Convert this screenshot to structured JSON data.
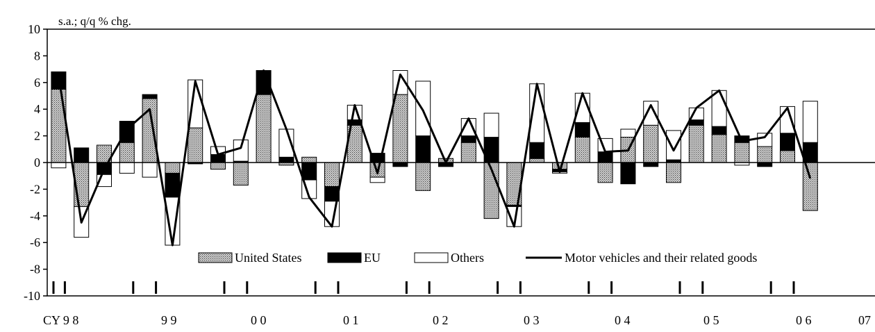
{
  "chart_data": {
    "type": "bar",
    "subtype": "stacked bar with line overlay",
    "unit_label": "s.a.; q/q % chg.",
    "ylim": [
      -10,
      10
    ],
    "yticks": [
      10,
      8,
      6,
      4,
      2,
      0,
      -2,
      -4,
      -6,
      -8,
      -10
    ],
    "grid": false,
    "legend_position": "bottom-center",
    "year_labels": [
      {
        "text": "CY 9 8",
        "q": 1
      },
      {
        "text": "9 9",
        "q": 5
      },
      {
        "text": "0 0",
        "q": 9
      },
      {
        "text": "0 1",
        "q": 13
      },
      {
        "text": "0 2",
        "q": 17
      },
      {
        "text": "0 3",
        "q": 21
      },
      {
        "text": "0 4",
        "q": 25
      },
      {
        "text": "0 5",
        "q": 29
      },
      {
        "text": "0 6",
        "q": 33
      },
      {
        "text": "07",
        "q": 37
      }
    ],
    "series": [
      {
        "name": "United States",
        "kind": "bar",
        "fill": "dotted-gray",
        "values": [
          5.5,
          -3.3,
          1.3,
          1.5,
          4.8,
          -0.8,
          2.6,
          -0.5,
          -1.7,
          5.1,
          -0.2,
          0.4,
          -1.8,
          2.8,
          -1.1,
          5.1,
          -2.1,
          0.3,
          1.5,
          -4.2,
          -3.2,
          0.3,
          -0.5,
          1.9,
          -1.5,
          1.9,
          2.8,
          -1.5,
          2.8,
          2.1,
          1.5,
          1.2,
          0.9,
          -3.6
        ]
      },
      {
        "name": "EU",
        "kind": "bar",
        "fill": "black",
        "values": [
          1.3,
          1.1,
          -0.9,
          1.6,
          0.3,
          -1.8,
          -0.1,
          0.6,
          0.1,
          1.8,
          0.4,
          -1.3,
          -1.1,
          0.4,
          0.7,
          -0.3,
          2.0,
          -0.3,
          0.5,
          1.9,
          -0.1,
          1.2,
          -0.2,
          1.1,
          0.8,
          -1.6,
          -0.3,
          0.2,
          0.4,
          0.6,
          0.5,
          -0.3,
          1.3,
          1.5
        ]
      },
      {
        "name": "Others",
        "kind": "bar",
        "fill": "white",
        "values": [
          -0.4,
          -2.3,
          -0.9,
          -0.8,
          -1.1,
          -3.6,
          3.6,
          0.6,
          1.6,
          0.0,
          2.1,
          -1.4,
          -1.9,
          1.1,
          -0.4,
          1.8,
          4.1,
          0.0,
          1.3,
          1.8,
          -1.5,
          4.4,
          -0.1,
          2.2,
          1.0,
          0.6,
          1.8,
          2.2,
          0.9,
          2.7,
          -0.2,
          1.0,
          2.0,
          3.1
        ]
      },
      {
        "name": "Motor vehicles and their related goods",
        "kind": "line",
        "color": "#000000",
        "values": [
          6.5,
          -4.5,
          -0.5,
          2.5,
          4.0,
          -6.2,
          6.1,
          0.6,
          1.1,
          6.9,
          2.5,
          -2.6,
          -4.8,
          4.3,
          -0.8,
          6.6,
          3.9,
          0.0,
          3.3,
          -0.5,
          -4.8,
          5.9,
          -0.7,
          5.2,
          0.8,
          0.9,
          4.3,
          0.9,
          4.1,
          5.4,
          1.6,
          1.9,
          4.1,
          -1.2
        ]
      }
    ]
  }
}
